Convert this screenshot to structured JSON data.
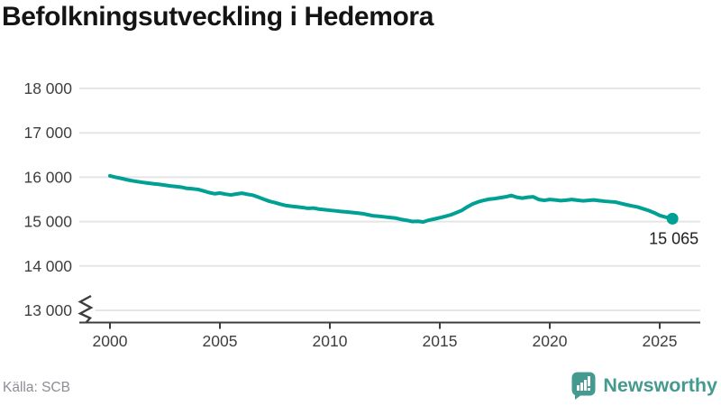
{
  "chart_data": {
    "type": "line",
    "title": "Befolkningsutveckling i Hedemora",
    "xlabel": "",
    "ylabel": "",
    "x_range": [
      2000,
      2025.58
    ],
    "ylim": [
      13000,
      18000
    ],
    "grid": "horizontal",
    "axis_break": true,
    "legend": "none",
    "yticks": [
      {
        "value": 18000,
        "label": "18 000"
      },
      {
        "value": 17000,
        "label": "17 000"
      },
      {
        "value": 16000,
        "label": "16 000"
      },
      {
        "value": 15000,
        "label": "15 000"
      },
      {
        "value": 14000,
        "label": "14 000"
      },
      {
        "value": 13000,
        "label": "13 000"
      }
    ],
    "xticks": [
      {
        "value": 2000,
        "label": "2000"
      },
      {
        "value": 2005,
        "label": "2005"
      },
      {
        "value": 2010,
        "label": "2010"
      },
      {
        "value": 2015,
        "label": "2015"
      },
      {
        "value": 2020,
        "label": "2020"
      },
      {
        "value": 2025,
        "label": "2025"
      }
    ],
    "end_label": "15 065",
    "end_value": 15065,
    "colors": {
      "line": "#00a094",
      "grid": "#e5e5e5",
      "axis": "#3d3d3d",
      "tick_text": "#3f3f3f",
      "end_label_text": "#1e1e1e"
    },
    "series": [
      {
        "points": [
          [
            2000.0,
            16030
          ],
          [
            2000.25,
            16000
          ],
          [
            2000.5,
            15975
          ],
          [
            2000.75,
            15945
          ],
          [
            2001.0,
            15920
          ],
          [
            2001.25,
            15900
          ],
          [
            2001.5,
            15882
          ],
          [
            2001.75,
            15865
          ],
          [
            2002.0,
            15850
          ],
          [
            2002.25,
            15838
          ],
          [
            2002.5,
            15820
          ],
          [
            2002.75,
            15802
          ],
          [
            2003.0,
            15790
          ],
          [
            2003.25,
            15775
          ],
          [
            2003.5,
            15748
          ],
          [
            2003.75,
            15738
          ],
          [
            2004.0,
            15725
          ],
          [
            2004.25,
            15692
          ],
          [
            2004.5,
            15655
          ],
          [
            2004.75,
            15628
          ],
          [
            2005.0,
            15642
          ],
          [
            2005.25,
            15618
          ],
          [
            2005.5,
            15600
          ],
          [
            2005.75,
            15622
          ],
          [
            2006.0,
            15640
          ],
          [
            2006.25,
            15615
          ],
          [
            2006.5,
            15595
          ],
          [
            2006.75,
            15550
          ],
          [
            2007.0,
            15502
          ],
          [
            2007.25,
            15458
          ],
          [
            2007.5,
            15428
          ],
          [
            2007.75,
            15392
          ],
          [
            2008.0,
            15362
          ],
          [
            2008.25,
            15345
          ],
          [
            2008.5,
            15332
          ],
          [
            2008.75,
            15318
          ],
          [
            2009.0,
            15298
          ],
          [
            2009.25,
            15305
          ],
          [
            2009.5,
            15282
          ],
          [
            2009.75,
            15268
          ],
          [
            2010.0,
            15255
          ],
          [
            2010.25,
            15242
          ],
          [
            2010.5,
            15228
          ],
          [
            2010.75,
            15218
          ],
          [
            2011.0,
            15205
          ],
          [
            2011.25,
            15192
          ],
          [
            2011.5,
            15178
          ],
          [
            2011.75,
            15152
          ],
          [
            2012.0,
            15128
          ],
          [
            2012.25,
            15118
          ],
          [
            2012.5,
            15105
          ],
          [
            2012.75,
            15092
          ],
          [
            2013.0,
            15078
          ],
          [
            2013.25,
            15048
          ],
          [
            2013.5,
            15028
          ],
          [
            2013.75,
            15002
          ],
          [
            2014.0,
            15008
          ],
          [
            2014.25,
            14992
          ],
          [
            2014.5,
            15032
          ],
          [
            2014.75,
            15058
          ],
          [
            2015.0,
            15088
          ],
          [
            2015.25,
            15118
          ],
          [
            2015.5,
            15152
          ],
          [
            2015.75,
            15200
          ],
          [
            2016.0,
            15252
          ],
          [
            2016.25,
            15330
          ],
          [
            2016.5,
            15398
          ],
          [
            2016.75,
            15445
          ],
          [
            2017.0,
            15478
          ],
          [
            2017.25,
            15505
          ],
          [
            2017.5,
            15518
          ],
          [
            2017.75,
            15538
          ],
          [
            2018.0,
            15558
          ],
          [
            2018.25,
            15588
          ],
          [
            2018.5,
            15548
          ],
          [
            2018.75,
            15528
          ],
          [
            2019.0,
            15548
          ],
          [
            2019.25,
            15558
          ],
          [
            2019.5,
            15498
          ],
          [
            2019.75,
            15478
          ],
          [
            2020.0,
            15498
          ],
          [
            2020.25,
            15488
          ],
          [
            2020.5,
            15472
          ],
          [
            2020.75,
            15482
          ],
          [
            2021.0,
            15498
          ],
          [
            2021.25,
            15482
          ],
          [
            2021.5,
            15468
          ],
          [
            2021.75,
            15478
          ],
          [
            2022.0,
            15488
          ],
          [
            2022.25,
            15472
          ],
          [
            2022.5,
            15458
          ],
          [
            2022.75,
            15448
          ],
          [
            2023.0,
            15438
          ],
          [
            2023.25,
            15408
          ],
          [
            2023.5,
            15378
          ],
          [
            2023.75,
            15352
          ],
          [
            2024.0,
            15328
          ],
          [
            2024.25,
            15288
          ],
          [
            2024.5,
            15248
          ],
          [
            2024.75,
            15198
          ],
          [
            2025.0,
            15138
          ],
          [
            2025.25,
            15102
          ],
          [
            2025.58,
            15065
          ]
        ]
      }
    ]
  },
  "footer": {
    "source": "Källa: SCB",
    "brand": "Newsworthy",
    "brand_color": "#459a90"
  }
}
